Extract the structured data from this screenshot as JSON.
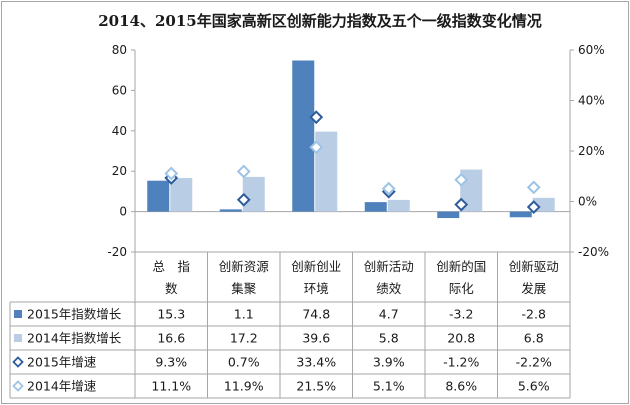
{
  "chart_data": {
    "type": "bar",
    "title": "2014、2015年国家高新区创新能力指数及五个一级指数变化情况",
    "categories": [
      [
        "总　指",
        "数"
      ],
      [
        "创新资源",
        "集聚"
      ],
      [
        "创新创业",
        "环境"
      ],
      [
        "创新活动",
        "绩效"
      ],
      [
        "创新的国",
        "际化"
      ],
      [
        "创新驱动",
        "发展"
      ]
    ],
    "left_axis": {
      "ylim": [
        -20,
        80
      ],
      "ticks": [
        "80",
        "60",
        "40",
        "20",
        "0",
        "-20"
      ]
    },
    "right_axis": {
      "ylim": [
        -0.2,
        0.6
      ],
      "ticks": [
        "60%",
        "40%",
        "20%",
        "0%",
        "-20%"
      ]
    },
    "series": [
      {
        "name": "2015年指数增长",
        "type": "bar",
        "axis": "left",
        "color": "#4f81bd",
        "values": [
          15.3,
          1.1,
          74.8,
          4.7,
          -3.2,
          -2.8
        ],
        "labels": [
          "15.3",
          "1.1",
          "74.8",
          "4.7",
          "-3.2",
          "-2.8"
        ]
      },
      {
        "name": "2014年指数增长",
        "type": "bar",
        "axis": "left",
        "color": "#b9cde5",
        "values": [
          16.6,
          17.2,
          39.6,
          5.8,
          20.8,
          6.8
        ],
        "labels": [
          "16.6",
          "17.2",
          "39.6",
          "5.8",
          "20.8",
          "6.8"
        ]
      },
      {
        "name": "2015年增速",
        "type": "marker",
        "axis": "right",
        "color": "#2e5c9a",
        "values": [
          0.093,
          0.007,
          0.334,
          0.039,
          -0.012,
          -0.022
        ],
        "labels": [
          "9.3%",
          "0.7%",
          "33.4%",
          "3.9%",
          "-1.2%",
          "-2.2%"
        ]
      },
      {
        "name": "2014年增速",
        "type": "marker",
        "axis": "right",
        "color": "#9dc3e6",
        "values": [
          0.111,
          0.119,
          0.215,
          0.051,
          0.086,
          0.056
        ],
        "labels": [
          "11.1%",
          "11.9%",
          "21.5%",
          "5.1%",
          "8.6%",
          "5.6%"
        ]
      }
    ],
    "grid": false,
    "legend": "data table"
  }
}
